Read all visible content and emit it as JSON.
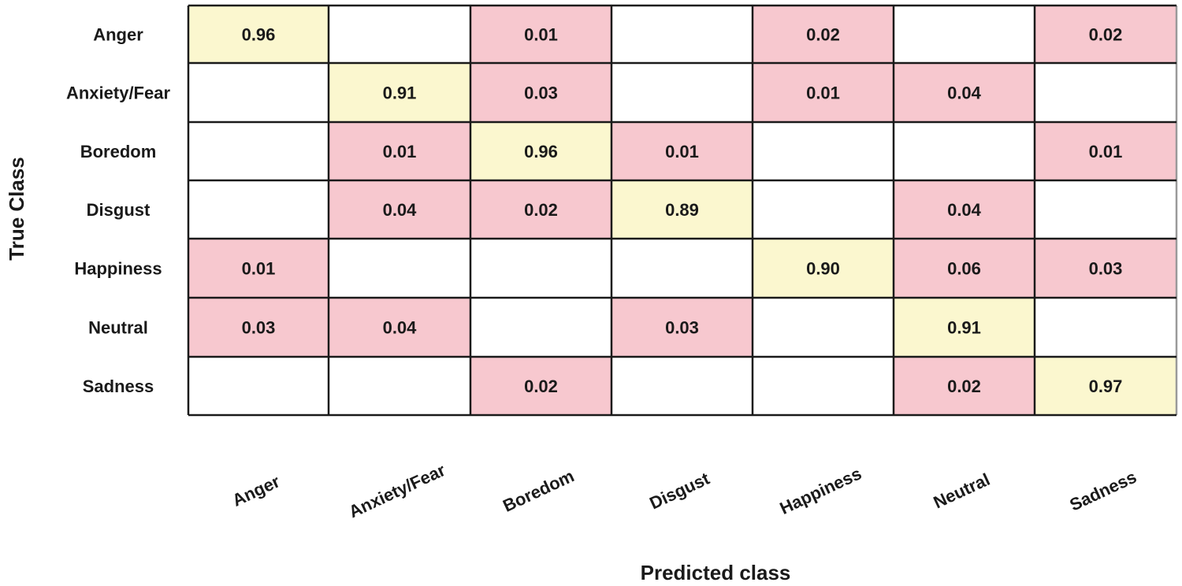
{
  "chart_data": {
    "type": "heatmap",
    "title": "",
    "xlabel": "Predicted class",
    "ylabel": "True Class",
    "rows": [
      "Anger",
      "Anxiety/Fear",
      "Boredom",
      "Disgust",
      "Happiness",
      "Neutral",
      "Sadness"
    ],
    "columns": [
      "Anger",
      "Anxiety/Fear",
      "Boredom",
      "Disgust",
      "Happiness",
      "Neutral",
      "Sadness"
    ],
    "cells": [
      [
        "0.96",
        "",
        "0.01",
        "",
        "0.02",
        "",
        "0.02"
      ],
      [
        "",
        "0.91",
        "0.03",
        "",
        "0.01",
        "0.04",
        ""
      ],
      [
        "",
        "0.01",
        "0.96",
        "0.01",
        "",
        "",
        "0.01"
      ],
      [
        "",
        "0.04",
        "0.02",
        "0.89",
        "",
        "0.04",
        ""
      ],
      [
        "0.01",
        "",
        "",
        "",
        "0.90",
        "0.06",
        "0.03"
      ],
      [
        "0.03",
        "0.04",
        "",
        "0.03",
        "",
        "0.91",
        ""
      ],
      [
        "",
        "",
        "0.02",
        "",
        "",
        "0.02",
        "0.97"
      ]
    ],
    "colors": {
      "diagonal": "#fbf7cf",
      "off_diagonal": "#f7c8cf",
      "empty": "#ffffff",
      "grid": "#1a1a1a"
    }
  }
}
